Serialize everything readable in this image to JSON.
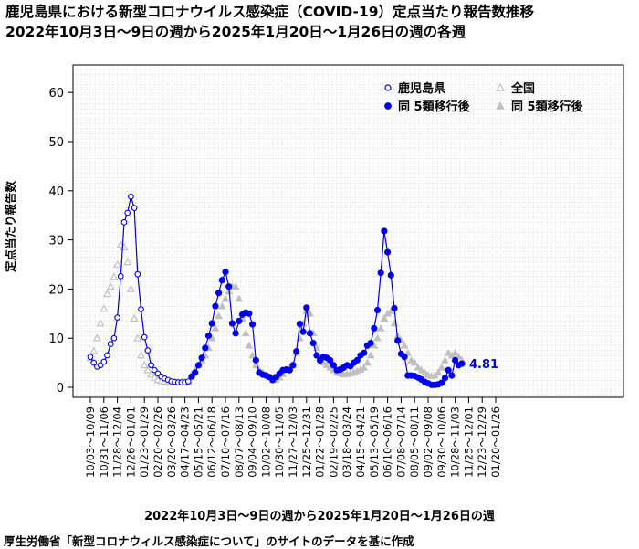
{
  "header": {
    "title_line1": "鹿児島県における新型コロナウイルス感染症（COVID-19）定点当たり報告数推移",
    "title_line2": "2022年10月3日～9日の週から2025年1月20日～1月26日の週の各週"
  },
  "footer": {
    "source": "厚生労働省「新型コロナウィルス感染症について」のサイトのデータを基に作成"
  },
  "chart_data": {
    "type": "line",
    "title": "鹿児島県における新型コロナウイルス感染症（COVID-19）定点当たり報告数推移",
    "subtitle": "2022年10月3日～9日の週から2025年1月20日～1月26日の週の各週",
    "xlabel": "2022年10月3日～9日の週から2025年1月20日～1月26日の週",
    "ylabel": "定点当たり報告数",
    "ylim": [
      0,
      65
    ],
    "yticks": [
      0,
      10,
      20,
      30,
      40,
      50,
      60
    ],
    "grid": true,
    "legend_position": "top-right",
    "last_value_label": "4.81",
    "colors": {
      "kagoshima": "#0000ee",
      "national": "#c0c0c0"
    },
    "x_tick_labels": [
      "10/03～10/09",
      "10/31～11/06",
      "11/28～12/04",
      "12/26～01/01",
      "01/23～01/29",
      "02/20～02/26",
      "03/20～03/26",
      "04/17～04/23",
      "05/15～05/21",
      "06/12～06/18",
      "07/10～07/16",
      "08/07～08/13",
      "09/04～09/10",
      "10/02～10/08",
      "10/30～11/05",
      "11/27～12/03",
      "12/25～12/31",
      "01/22～01/28",
      "02/19～02/25",
      "03/18～03/24",
      "04/15～04/21",
      "05/13～05/19",
      "06/10～06/16",
      "07/08～07/14",
      "08/05～08/11",
      "09/02～09/08",
      "09/30～10/06",
      "10/28～11/03",
      "11/25～12/01",
      "12/23～12/29",
      "01/20～01/26"
    ],
    "series": [
      {
        "name": "鹿児島県",
        "marker": "open-circle",
        "values": [
          6.2,
          5.0,
          4.2,
          4.5,
          5.2,
          6.5,
          8.8,
          10.0,
          14.2,
          22.6,
          33.6,
          35.5,
          38.8,
          36.5,
          23.0,
          15.9,
          10.2,
          7.5,
          4.5,
          3.5,
          2.8,
          2.2,
          1.8,
          1.5,
          1.2,
          1.1,
          1.0,
          1.0,
          1.0,
          1.2
        ]
      },
      {
        "name": "同 5類移行後",
        "marker": "filled-circle",
        "values": [
          2.2,
          3.0,
          4.5,
          6.0,
          8.0,
          10.5,
          13.0,
          16.5,
          19.2,
          21.8,
          23.5,
          20.5,
          13.0,
          11.0,
          13.5,
          14.8,
          15.2,
          15.0,
          12.8,
          5.5,
          3.0,
          2.6,
          2.4,
          2.1,
          1.5,
          2.1,
          2.8,
          3.5,
          3.6,
          3.5,
          4.5,
          7.3,
          12.9,
          11.3,
          16.2,
          11.0,
          9.0,
          6.5,
          5.5,
          6.2,
          6.0,
          5.5,
          4.5,
          3.5,
          3.6,
          4.0,
          4.5,
          4.3,
          5.0,
          5.5,
          6.5,
          7.0,
          8.5,
          9.0,
          12.0,
          15.7,
          23.3,
          31.8,
          27.5,
          22.8,
          16.1,
          9.5,
          6.8,
          6.2,
          2.4,
          2.4,
          2.3,
          2.0,
          1.6,
          1.1,
          0.8,
          0.5,
          0.5,
          0.6,
          0.9,
          1.9,
          3.5,
          2.4,
          5.5,
          4.5,
          4.81
        ]
      },
      {
        "name": "全国",
        "marker": "open-triangle",
        "values": [
          6.0,
          7.4,
          10.0,
          13.0,
          16.0,
          19.0,
          20.5,
          22.5,
          25.0,
          29.0,
          28.5,
          25.5,
          20.0,
          14.0,
          10.0,
          6.5,
          4.5,
          3.5,
          2.6,
          2.0,
          1.5,
          1.3,
          1.2,
          1.1,
          1.0,
          1.0,
          1.1,
          1.1,
          1.1,
          1.2
        ]
      },
      {
        "name": "同 5類移行後",
        "marker": "filled-triangle",
        "values": [
          2.6,
          3.5,
          4.5,
          5.5,
          6.5,
          8.0,
          10.0,
          12.0,
          14.5,
          16.5,
          18.0,
          19.5,
          20.5,
          20.5,
          18.0,
          14.0,
          11.0,
          8.5,
          6.5,
          4.5,
          3.5,
          3.0,
          2.5,
          2.0,
          1.5,
          1.6,
          2.0,
          2.7,
          3.5,
          4.0,
          4.5,
          7.0,
          10.0,
          13.0,
          15.5,
          15.0,
          11.0,
          8.0,
          6.0,
          5.0,
          4.5,
          4.0,
          3.5,
          3.0,
          2.8,
          2.6,
          2.7,
          2.8,
          3.0,
          3.3,
          3.6,
          4.0,
          5.0,
          6.5,
          8.5,
          10.0,
          12.0,
          14.0,
          15.0,
          15.5,
          13.0,
          10.5,
          9.5,
          8.5,
          7.0,
          5.5,
          5.0,
          4.0,
          3.5,
          3.0,
          2.5,
          2.3,
          2.4,
          3.0,
          4.0,
          5.5,
          7.0,
          6.5,
          7.0,
          6.3,
          5.5
        ]
      }
    ]
  }
}
